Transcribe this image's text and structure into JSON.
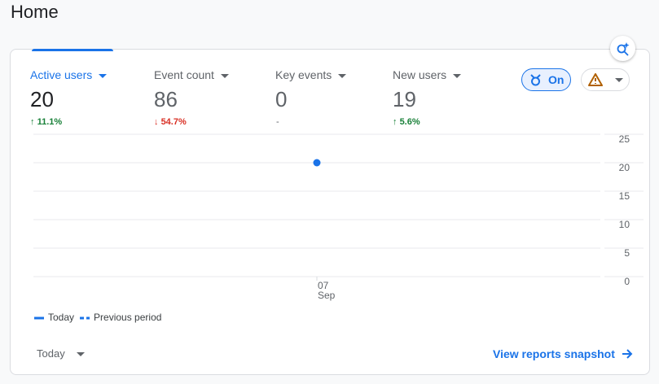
{
  "header": {
    "title": "Home"
  },
  "metrics": [
    {
      "label": "Active users",
      "value": 20,
      "change": "11.1%"
    },
    {
      "label": "Event count",
      "value": 86,
      "change": "54.7%"
    },
    {
      "label": "Key events",
      "value": 0,
      "change": "-"
    },
    {
      "label": "New users",
      "value": 19,
      "change": "5.6%"
    }
  ],
  "toggle": {
    "label": "On"
  },
  "chart_data": {
    "type": "line",
    "categories": [
      [
        "07",
        "Sep"
      ]
    ],
    "series": [
      {
        "name": "Today",
        "color": "#1a73e8",
        "values": [
          20
        ]
      },
      {
        "name": "Previous period",
        "color": "#1a73e8",
        "values": [
          null
        ]
      }
    ],
    "ylim": [
      0,
      25
    ],
    "yticks": [
      0,
      5,
      10,
      15,
      20,
      25
    ],
    "grid": true
  },
  "footer": {
    "range": "Today",
    "link": "View reports snapshot"
  }
}
